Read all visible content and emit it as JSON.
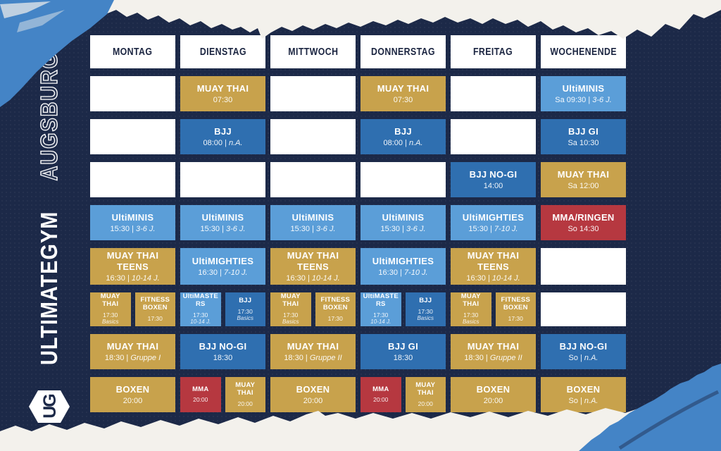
{
  "brand": {
    "gym_name": "ULTIMATEGYM",
    "city": "AUGSBURG",
    "logo_monogram": "UG"
  },
  "days": [
    "MONTAG",
    "DIENSTAG",
    "MITTWOCH",
    "DONNERSTAG",
    "FREITAG",
    "WOCHENENDE"
  ],
  "schedule": {
    "rows": [
      {
        "cells": [
          {
            "kind": "empty"
          },
          {
            "kind": "class",
            "color": "gold",
            "title": "MUAY THAI",
            "sub": "07:30",
            "sub_italic": ""
          },
          {
            "kind": "empty"
          },
          {
            "kind": "class",
            "color": "gold",
            "title": "MUAY THAI",
            "sub": "07:30",
            "sub_italic": ""
          },
          {
            "kind": "empty"
          },
          {
            "kind": "class",
            "color": "lightblue",
            "title": "UltiMINIS",
            "sub": "Sa 09:30 | ",
            "sub_italic": "3-6 J."
          }
        ]
      },
      {
        "cells": [
          {
            "kind": "empty"
          },
          {
            "kind": "class",
            "color": "blue",
            "title": "BJJ",
            "sub": "08:00 | ",
            "sub_italic": "n.A."
          },
          {
            "kind": "empty"
          },
          {
            "kind": "class",
            "color": "blue",
            "title": "BJJ",
            "sub": "08:00 | ",
            "sub_italic": "n.A."
          },
          {
            "kind": "empty"
          },
          {
            "kind": "class",
            "color": "blue",
            "title": "BJJ GI",
            "sub": "Sa 10:30",
            "sub_italic": ""
          }
        ]
      },
      {
        "cells": [
          {
            "kind": "empty"
          },
          {
            "kind": "empty"
          },
          {
            "kind": "empty"
          },
          {
            "kind": "empty"
          },
          {
            "kind": "class",
            "color": "blue",
            "title": "BJJ NO-GI",
            "sub": "14:00",
            "sub_italic": ""
          },
          {
            "kind": "class",
            "color": "gold",
            "title": "MUAY THAI",
            "sub": "Sa 12:00",
            "sub_italic": ""
          }
        ]
      },
      {
        "cells": [
          {
            "kind": "class",
            "color": "lightblue",
            "title": "UltiMINIS",
            "sub": "15:30 | ",
            "sub_italic": "3-6 J."
          },
          {
            "kind": "class",
            "color": "lightblue",
            "title": "UltiMINIS",
            "sub": "15:30 | ",
            "sub_italic": "3-6 J."
          },
          {
            "kind": "class",
            "color": "lightblue",
            "title": "UltiMINIS",
            "sub": "15:30 | ",
            "sub_italic": "3-6 J."
          },
          {
            "kind": "class",
            "color": "lightblue",
            "title": "UltiMINIS",
            "sub": "15:30 | ",
            "sub_italic": "3-6 J."
          },
          {
            "kind": "class",
            "color": "lightblue",
            "title": "UltiMIGHTIES",
            "sub": "15:30 | ",
            "sub_italic": "7-10 J."
          },
          {
            "kind": "class",
            "color": "red",
            "title": "MMA/RINGEN",
            "sub": "So 14:30",
            "sub_italic": ""
          }
        ]
      },
      {
        "cells": [
          {
            "kind": "class",
            "color": "gold",
            "title": "MUAY THAI TEENS",
            "sub": "16:30 | ",
            "sub_italic": "10-14 J."
          },
          {
            "kind": "class",
            "color": "lightblue",
            "title": "UltiMIGHTIES",
            "sub": "16:30 | ",
            "sub_italic": "7-10 J."
          },
          {
            "kind": "class",
            "color": "gold",
            "title": "MUAY THAI TEENS",
            "sub": "16:30 | ",
            "sub_italic": "10-14 J."
          },
          {
            "kind": "class",
            "color": "lightblue",
            "title": "UltiMIGHTIES",
            "sub": "16:30 | ",
            "sub_italic": "7-10 J."
          },
          {
            "kind": "class",
            "color": "gold",
            "title": "MUAY THAI TEENS",
            "sub": "16:30 | ",
            "sub_italic": "10-14 J."
          },
          {
            "kind": "empty"
          }
        ]
      },
      {
        "cells": [
          {
            "kind": "split",
            "halves": [
              {
                "color": "gold",
                "title": "MUAY THAI",
                "time": "17:30",
                "tag": "Basics"
              },
              {
                "color": "gold",
                "title": "FITNESS BOXEN",
                "time": "17:30",
                "tag": ""
              }
            ]
          },
          {
            "kind": "split",
            "halves": [
              {
                "color": "lightblue",
                "title": "UltiMASTERS",
                "time": "17:30",
                "tag": "10-14 J."
              },
              {
                "color": "blue",
                "title": "BJJ",
                "time": "17:30",
                "tag": "Basics"
              }
            ]
          },
          {
            "kind": "split",
            "halves": [
              {
                "color": "gold",
                "title": "MUAY THAI",
                "time": "17:30",
                "tag": "Basics"
              },
              {
                "color": "gold",
                "title": "FITNESS BOXEN",
                "time": "17:30",
                "tag": ""
              }
            ]
          },
          {
            "kind": "split",
            "halves": [
              {
                "color": "lightblue",
                "title": "UltiMASTERS",
                "time": "17:30",
                "tag": "10-14 J."
              },
              {
                "color": "blue",
                "title": "BJJ",
                "time": "17:30",
                "tag": "Basics"
              }
            ]
          },
          {
            "kind": "split",
            "halves": [
              {
                "color": "gold",
                "title": "MUAY THAI",
                "time": "17:30",
                "tag": "Basics"
              },
              {
                "color": "gold",
                "title": "FITNESS BOXEN",
                "time": "17:30",
                "tag": ""
              }
            ]
          },
          {
            "kind": "empty"
          }
        ]
      },
      {
        "cells": [
          {
            "kind": "class",
            "color": "gold",
            "title": "MUAY THAI",
            "sub": "18:30 | ",
            "sub_italic": "Gruppe I"
          },
          {
            "kind": "class",
            "color": "blue",
            "title": "BJJ NO-GI",
            "sub": "18:30",
            "sub_italic": ""
          },
          {
            "kind": "class",
            "color": "gold",
            "title": "MUAY THAI",
            "sub": "18:30 | ",
            "sub_italic": "Gruppe II"
          },
          {
            "kind": "class",
            "color": "blue",
            "title": "BJJ GI",
            "sub": "18:30",
            "sub_italic": ""
          },
          {
            "kind": "class",
            "color": "gold",
            "title": "MUAY THAI",
            "sub": "18:30 | ",
            "sub_italic": "Gruppe II"
          },
          {
            "kind": "class",
            "color": "blue",
            "title": "BJJ NO-GI",
            "sub": "So | ",
            "sub_italic": "n.A."
          }
        ]
      },
      {
        "cells": [
          {
            "kind": "class",
            "color": "gold",
            "title": "BOXEN",
            "sub": "20:00",
            "sub_italic": ""
          },
          {
            "kind": "split",
            "halves": [
              {
                "color": "red",
                "title": "MMA",
                "time": "20:00",
                "tag": ""
              },
              {
                "color": "gold",
                "title": "MUAY THAI",
                "time": "20:00",
                "tag": ""
              }
            ]
          },
          {
            "kind": "class",
            "color": "gold",
            "title": "BOXEN",
            "sub": "20:00",
            "sub_italic": ""
          },
          {
            "kind": "split",
            "halves": [
              {
                "color": "red",
                "title": "MMA",
                "time": "20:00",
                "tag": ""
              },
              {
                "color": "gold",
                "title": "MUAY THAI",
                "time": "20:00",
                "tag": ""
              }
            ]
          },
          {
            "kind": "class",
            "color": "gold",
            "title": "BOXEN",
            "sub": "20:00",
            "sub_italic": ""
          },
          {
            "kind": "class",
            "color": "gold",
            "title": "BOXEN",
            "sub": "So | ",
            "sub_italic": "n.A."
          }
        ]
      }
    ]
  },
  "colors": {
    "background_navy": "#1c2948",
    "cell_gold": "#c8a24c",
    "cell_blue": "#2f6fb0",
    "cell_light_blue": "#5b9ed8",
    "cell_red": "#b63840",
    "cell_white": "#ffffff",
    "header_text_navy": "#1a2440",
    "paper_white": "#f3f1ec",
    "brush_blue": "#4484c6"
  }
}
